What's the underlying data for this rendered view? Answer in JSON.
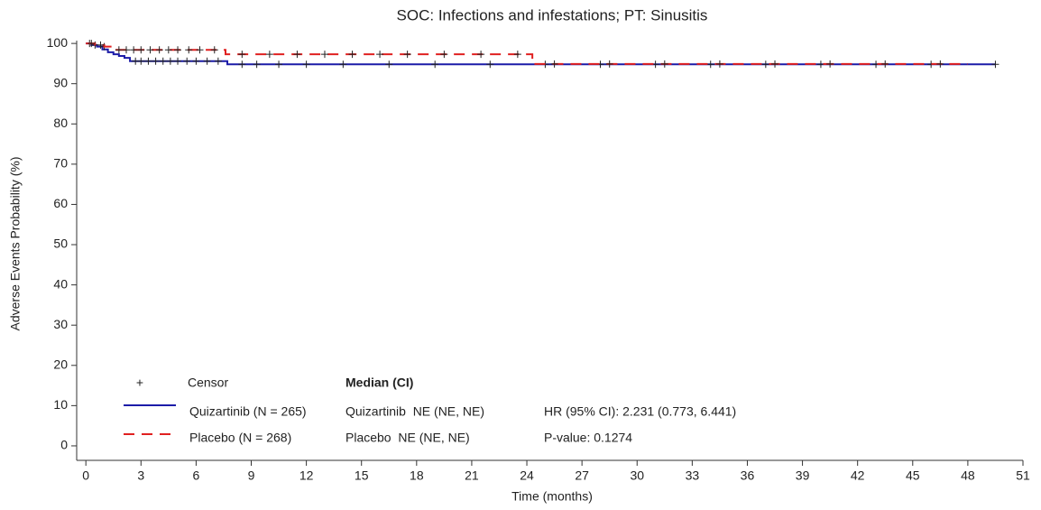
{
  "chart_data": {
    "type": "km",
    "title": "SOC: Infections and infestations; PT: Sinusitis",
    "xlabel": "Time (months)",
    "ylabel": "Adverse Events Probability (%)",
    "xlim": [
      -0.5,
      51
    ],
    "ylim": [
      -3.6,
      100.7
    ],
    "xticks": [
      0,
      3,
      6,
      9,
      12,
      15,
      18,
      21,
      24,
      27,
      30,
      33,
      36,
      39,
      42,
      45,
      48,
      51
    ],
    "yticks": [
      0,
      10,
      20,
      30,
      40,
      50,
      60,
      70,
      80,
      90,
      100
    ],
    "step": true,
    "series": [
      {
        "name": "Quizartinib (N = 265)",
        "color": "#1c1ca8",
        "dash": false,
        "x": [
          0,
          0.3,
          0.6,
          0.9,
          1.2,
          1.5,
          1.8,
          2.1,
          2.4,
          7.7,
          49.5
        ],
        "values": [
          100,
          99.6,
          99.2,
          98.5,
          97.8,
          97.3,
          96.9,
          96.4,
          95.6,
          94.8,
          94.8
        ],
        "censor": {
          "x": [
            0.2,
            0.5,
            1.0,
            2.7,
            3.0,
            3.4,
            3.8,
            4.2,
            4.6,
            5.0,
            5.5,
            6.0,
            6.6,
            7.2,
            8.5,
            9.3,
            10.5,
            12.0,
            14.0,
            16.5,
            19.0,
            22.0,
            25.0,
            28.0,
            31.0,
            34.0,
            37.0,
            40.0,
            43.0,
            46.0,
            49.5
          ],
          "values": [
            100,
            99.6,
            99.2,
            95.6,
            95.6,
            95.6,
            95.6,
            95.6,
            95.6,
            95.6,
            95.6,
            95.6,
            95.6,
            95.6,
            94.8,
            94.8,
            94.8,
            94.8,
            94.8,
            94.8,
            94.8,
            94.8,
            94.8,
            94.8,
            94.8,
            94.8,
            94.8,
            94.8,
            94.8,
            94.8,
            94.8
          ]
        }
      },
      {
        "name": "Placebo (N = 268)",
        "color": "#e02020",
        "dash": true,
        "x": [
          0,
          0.5,
          1.0,
          1.5,
          7.6,
          24.3,
          48
        ],
        "values": [
          100,
          99.6,
          99.2,
          98.4,
          97.3,
          94.9,
          94.9
        ],
        "censor": {
          "x": [
            0.3,
            0.8,
            1.8,
            2.2,
            2.6,
            3.0,
            3.5,
            4.0,
            4.5,
            5.0,
            5.6,
            6.2,
            7.0,
            8.5,
            10.0,
            11.5,
            13.0,
            14.5,
            16.0,
            17.5,
            19.5,
            21.5,
            23.5,
            25.5,
            28.5,
            31.5,
            34.5,
            37.5,
            40.5,
            43.5,
            46.5
          ],
          "values": [
            100,
            99.6,
            98.4,
            98.4,
            98.4,
            98.4,
            98.4,
            98.4,
            98.4,
            98.4,
            98.4,
            98.4,
            98.4,
            97.3,
            97.3,
            97.3,
            97.3,
            97.3,
            97.3,
            97.3,
            97.3,
            97.3,
            97.3,
            94.9,
            94.9,
            94.9,
            94.9,
            94.9,
            94.9,
            94.9,
            94.9
          ]
        }
      }
    ],
    "legend": {
      "censor_symbol": "+",
      "censor_label": "Censor",
      "median_header": "Median (CI)",
      "median": [
        "Quizartinib  NE (NE, NE)",
        "Placebo  NE (NE, NE)"
      ],
      "stats": [
        "HR (95% CI): 2.231 (0.773, 6.441)",
        "P-value: 0.1274"
      ]
    }
  }
}
